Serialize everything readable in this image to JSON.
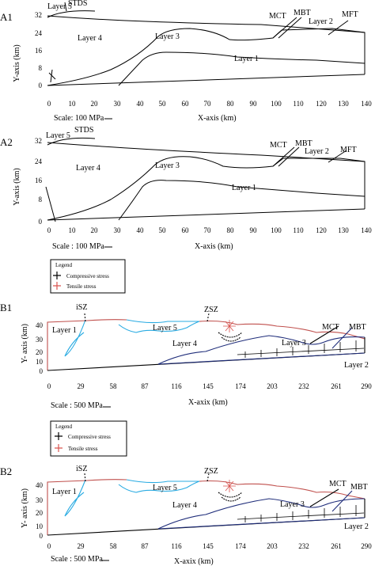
{
  "panels": {
    "a1": {
      "tag": "A1",
      "ylabel": "Y-axis (km)",
      "xlabel": "X-axis (km)",
      "scale": "Scale: 100 MPa",
      "yticks": [
        "0",
        "8",
        "16",
        "24",
        "32"
      ],
      "xticks": [
        "0",
        "10",
        "20",
        "30",
        "40",
        "50",
        "60",
        "70",
        "80",
        "90",
        "100",
        "110",
        "120",
        "130",
        "140"
      ],
      "labels": {
        "layer5": "Layer 5",
        "stds": "STDS",
        "layer4": "Layer 4",
        "layer3": "Layer 3",
        "mct": "MCT",
        "mbt": "MBT",
        "layer2": "Layer 2",
        "mft": "MFT",
        "layer1": "Layer 1"
      }
    },
    "a2": {
      "tag": "A2",
      "ylabel": "Y-axis (km)",
      "xlabel": "X-axis (km)",
      "scale": "Scale : 100 MPa",
      "yticks": [
        "0",
        "8",
        "16",
        "24",
        "32"
      ],
      "xticks": [
        "0",
        "10",
        "20",
        "30",
        "40",
        "50",
        "60",
        "70",
        "80",
        "90",
        "100",
        "110",
        "120",
        "130",
        "140"
      ],
      "labels": {
        "layer5": "Layer 5",
        "stds": "STDS",
        "layer4": "Layer 4",
        "layer3": "Layer 3",
        "mct": "MCT",
        "mbt": "MBT",
        "layer2": "Layer 2",
        "mft": "MFT",
        "layer1": "Layer 1"
      },
      "legend": {
        "title": "Legend",
        "compressive": "Compressive stress",
        "tensile": "Tensile stress"
      }
    },
    "b1": {
      "tag": "B1",
      "ylabel": "Y- axis (km)",
      "xlabel": "X-axix (km)",
      "scale": "Scale :  500 MPa",
      "yticks": [
        "0",
        "10",
        "20",
        "30",
        "40"
      ],
      "xticks": [
        "0",
        "29",
        "58",
        "87",
        "116",
        "145",
        "174",
        "203",
        "232",
        "261",
        "290"
      ],
      "labels": {
        "isz": "iSZ",
        "zsz": "ZSZ",
        "layer1": "Layer 1",
        "layer5": "Layer 5",
        "layer4": "Layer 4",
        "layer3": "Layer 3",
        "mct": "MCT",
        "mbt": "MBT",
        "layer2": "Layer 2"
      },
      "legend": {
        "title": "Legend",
        "compressive": "Compressive stress",
        "tensile": "Tensile stress"
      }
    },
    "b2": {
      "tag": "B2",
      "ylabel": "Y- axis (km)",
      "xlabel": "X-axix (km)",
      "scale": "Scale : 500 MPa",
      "yticks": [
        "0",
        "10",
        "20",
        "30",
        "40"
      ],
      "xticks": [
        "0",
        "29",
        "58",
        "87",
        "116",
        "145",
        "174",
        "203",
        "232",
        "261",
        "290"
      ],
      "labels": {
        "isz": "iSZ",
        "zsz": "ZSZ",
        "layer1": "Layer 1",
        "layer5": "Layer 5",
        "layer4": "Layer 4",
        "layer3": "Layer 3",
        "mct": "MCT",
        "mbt": "MBT",
        "layer2": "Layer 2"
      }
    }
  },
  "colors": {
    "ink": "#000000",
    "topo_red": "#c0504d",
    "layer5_cyan": "#29abe2",
    "layer3_navy": "#1f2d7a",
    "tensile_red": "#d9534f"
  }
}
